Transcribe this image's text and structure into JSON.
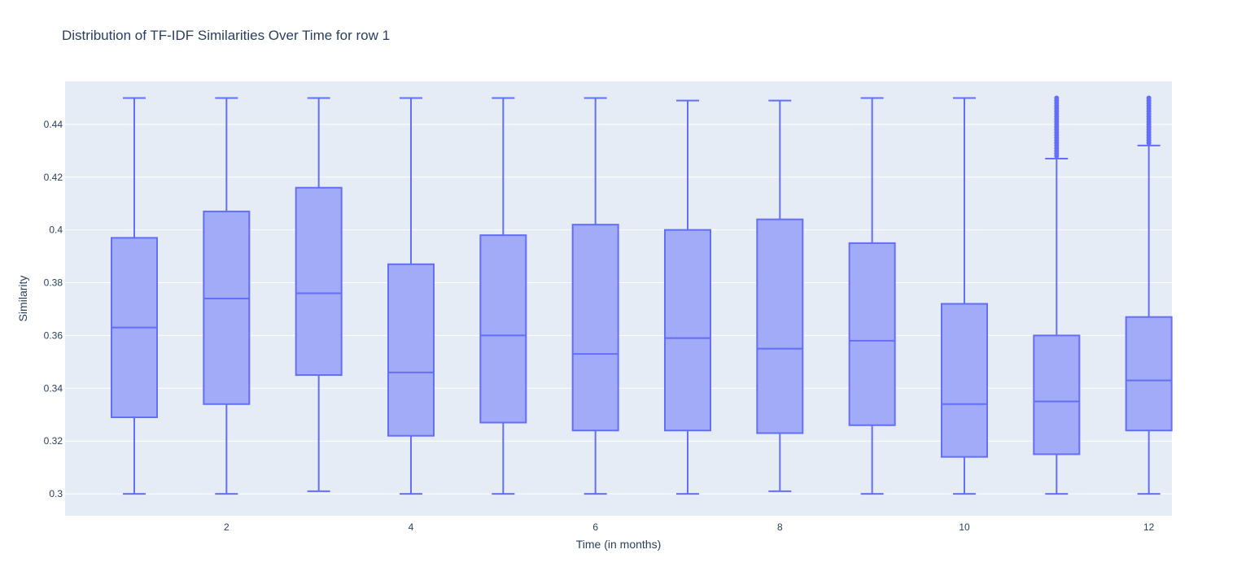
{
  "chart_data": {
    "type": "box",
    "title": "Distribution of TF-IDF Similarities Over Time for row 1",
    "xlabel": "Time (in months)",
    "ylabel": "Similarity",
    "xlim": [
      0.25,
      12.25
    ],
    "ylim": [
      0.2917,
      0.4563
    ],
    "x_ticks": [
      2,
      4,
      6,
      8,
      10,
      12
    ],
    "y_ticks": [
      0.3,
      0.32,
      0.34,
      0.36,
      0.38,
      0.4,
      0.42,
      0.44
    ],
    "y_tick_labels": [
      "0.3",
      "0.32",
      "0.34",
      "0.36",
      "0.38",
      "0.4",
      "0.42",
      "0.44"
    ],
    "grid": true,
    "colors": {
      "box_fill": "#a2abf7",
      "box_line": "#636efa",
      "plot_bg": "#e5ecf6",
      "text": "#2a3f5f"
    },
    "boxes": [
      {
        "x": 1,
        "min": 0.3,
        "q1": 0.329,
        "median": 0.363,
        "q3": 0.397,
        "max": 0.45,
        "outliers": []
      },
      {
        "x": 2,
        "min": 0.3,
        "q1": 0.334,
        "median": 0.374,
        "q3": 0.407,
        "max": 0.45,
        "outliers": []
      },
      {
        "x": 3,
        "min": 0.301,
        "q1": 0.345,
        "median": 0.376,
        "q3": 0.416,
        "max": 0.45,
        "outliers": []
      },
      {
        "x": 4,
        "min": 0.3,
        "q1": 0.322,
        "median": 0.346,
        "q3": 0.387,
        "max": 0.45,
        "outliers": []
      },
      {
        "x": 5,
        "min": 0.3,
        "q1": 0.327,
        "median": 0.36,
        "q3": 0.398,
        "max": 0.45,
        "outliers": []
      },
      {
        "x": 6,
        "min": 0.3,
        "q1": 0.324,
        "median": 0.353,
        "q3": 0.402,
        "max": 0.45,
        "outliers": []
      },
      {
        "x": 7,
        "min": 0.3,
        "q1": 0.324,
        "median": 0.359,
        "q3": 0.4,
        "max": 0.449,
        "outliers": []
      },
      {
        "x": 8,
        "min": 0.301,
        "q1": 0.323,
        "median": 0.355,
        "q3": 0.404,
        "max": 0.449,
        "outliers": []
      },
      {
        "x": 9,
        "min": 0.3,
        "q1": 0.326,
        "median": 0.358,
        "q3": 0.395,
        "max": 0.45,
        "outliers": []
      },
      {
        "x": 10,
        "min": 0.3,
        "q1": 0.314,
        "median": 0.334,
        "q3": 0.372,
        "max": 0.45,
        "outliers": []
      },
      {
        "x": 11,
        "min": 0.3,
        "q1": 0.315,
        "median": 0.335,
        "q3": 0.36,
        "max": 0.427,
        "outliers": [
          0.428,
          0.429,
          0.43,
          0.431,
          0.432,
          0.433,
          0.434,
          0.435,
          0.436,
          0.437,
          0.438,
          0.439,
          0.44,
          0.441,
          0.442,
          0.443,
          0.444,
          0.445,
          0.446,
          0.447,
          0.448,
          0.449,
          0.45
        ]
      },
      {
        "x": 12,
        "min": 0.3,
        "q1": 0.324,
        "median": 0.343,
        "q3": 0.367,
        "max": 0.432,
        "outliers": [
          0.433,
          0.434,
          0.435,
          0.436,
          0.437,
          0.438,
          0.439,
          0.44,
          0.441,
          0.442,
          0.443,
          0.444,
          0.445,
          0.446,
          0.447,
          0.448,
          0.449,
          0.45
        ]
      }
    ]
  }
}
